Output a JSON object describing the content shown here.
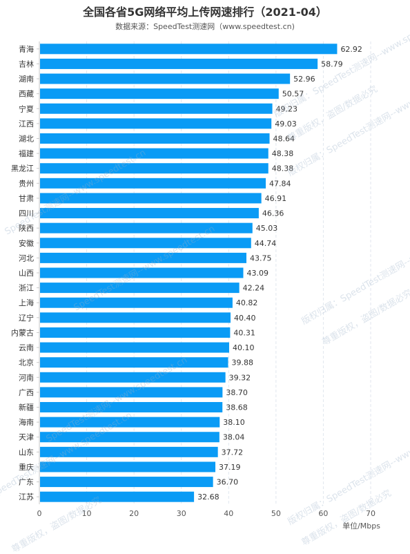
{
  "title": "全国各省5G网络平均上传网速排行（2021-04）",
  "subtitle": "数据来源：SpeedTest测速网（www.speedtest.cn)",
  "watermark": [
    "SpeedTest测速网--www.speedtest.cn",
    "版权归属：SpeedTest测速网--www.speedtest.cn",
    "尊重版权，盗图/数据必究"
  ],
  "chart_data": {
    "type": "bar",
    "orientation": "horizontal",
    "categories": [
      "青海",
      "吉林",
      "湖南",
      "西藏",
      "宁夏",
      "江西",
      "湖北",
      "福建",
      "黑龙江",
      "贵州",
      "甘肃",
      "四川",
      "陕西",
      "安徽",
      "河北",
      "山西",
      "浙江",
      "上海",
      "辽宁",
      "内蒙古",
      "云南",
      "北京",
      "河南",
      "广西",
      "新疆",
      "海南",
      "天津",
      "山东",
      "重庆",
      "广东",
      "江苏"
    ],
    "values": [
      62.92,
      58.79,
      52.96,
      50.57,
      49.23,
      49.03,
      48.64,
      48.38,
      48.38,
      47.84,
      46.91,
      46.36,
      45.03,
      44.74,
      43.75,
      43.09,
      42.24,
      40.82,
      40.4,
      40.31,
      40.1,
      39.88,
      39.32,
      38.7,
      38.68,
      38.1,
      38.04,
      37.72,
      37.19,
      36.7,
      32.68
    ],
    "value_labels": [
      "62.92",
      "58.79",
      "52.96",
      "50.57",
      "49.23",
      "49.03",
      "48.64",
      "48.38",
      "48.38",
      "47.84",
      "46.91",
      "46.36",
      "45.03",
      "44.74",
      "43.75",
      "43.09",
      "42.24",
      "40.82",
      "40.40",
      "40.31",
      "40.10",
      "39.88",
      "39.32",
      "38.70",
      "38.68",
      "38.10",
      "38.04",
      "37.72",
      "37.19",
      "36.70",
      "32.68"
    ],
    "xlim": [
      0,
      70
    ],
    "xticks": [
      "0",
      "10",
      "20",
      "30",
      "40",
      "50",
      "60",
      "70"
    ],
    "xlabel": "单位/Mbps",
    "ylabel": "",
    "grid": true,
    "bar_color": "#0a9bf5",
    "grid_color": "#e0e6ee"
  }
}
